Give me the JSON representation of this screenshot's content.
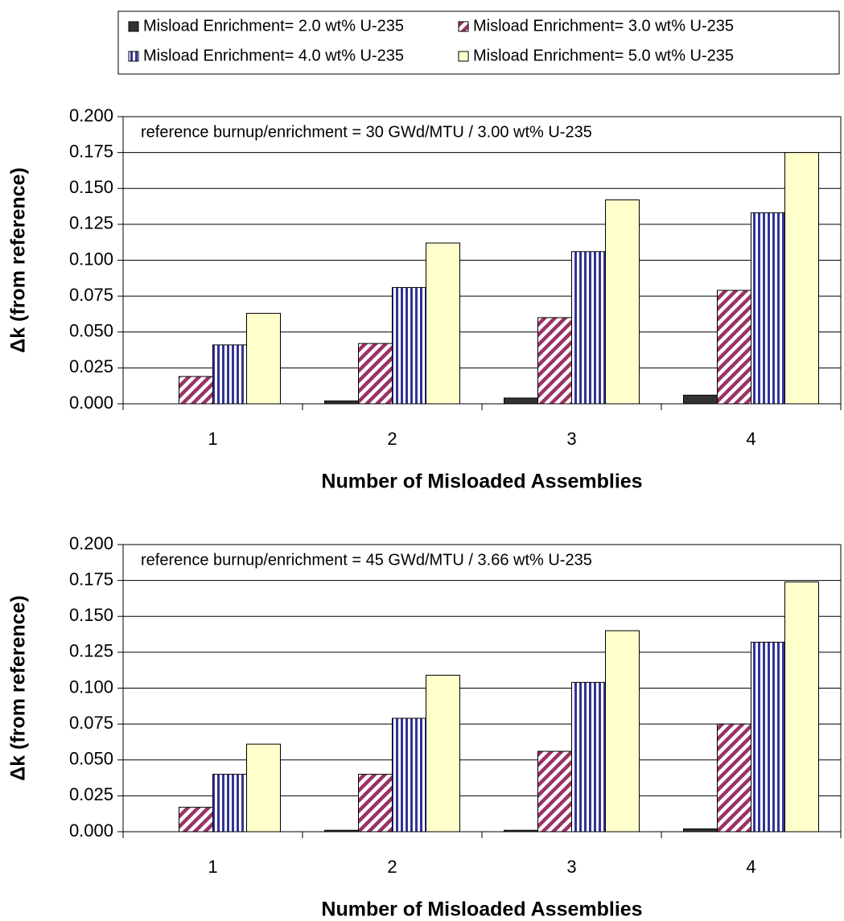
{
  "chart_data": [
    {
      "type": "bar",
      "annotation": "reference burnup/enrichment = 30 GWd/MTU / 3.00 wt% U-235",
      "x_label": "Number of Misloaded Assemblies",
      "y_label": "Δk (from reference)",
      "categories": [
        "1",
        "2",
        "3",
        "4"
      ],
      "series": [
        {
          "name": "Misload Enrichment= 2.0 wt% U-235",
          "color": "#333333",
          "values": [
            0.0,
            0.002,
            0.004,
            0.006
          ]
        },
        {
          "name": "Misload Enrichment= 3.0 wt% U-235",
          "color": "#993366",
          "values": [
            0.019,
            0.042,
            0.06,
            0.079
          ]
        },
        {
          "name": "Misload Enrichment= 4.0 wt% U-235",
          "color": "#333399",
          "values": [
            0.041,
            0.081,
            0.106,
            0.133
          ]
        },
        {
          "name": "Misload Enrichment= 5.0 wt% U-235",
          "color": "#ffffcc",
          "values": [
            0.063,
            0.112,
            0.142,
            0.175
          ]
        }
      ],
      "ylim": [
        0,
        0.2
      ],
      "yticks": [
        {
          "value": 0,
          "label": "0.000"
        },
        {
          "value": 0.025,
          "label": "0.025"
        },
        {
          "value": 0.05,
          "label": "0.050"
        },
        {
          "value": 0.075,
          "label": "0.075"
        },
        {
          "value": 0.1,
          "label": "0.100"
        },
        {
          "value": 0.125,
          "label": "0.125"
        },
        {
          "value": 0.15,
          "label": "0.150"
        },
        {
          "value": 0.175,
          "label": "0.175"
        },
        {
          "value": 0.2,
          "label": "0.200"
        }
      ],
      "grid": true
    },
    {
      "type": "bar",
      "annotation": "reference burnup/enrichment = 45 GWd/MTU / 3.66 wt% U-235",
      "x_label": "Number of Misloaded Assemblies",
      "y_label": "Δk (from reference)",
      "categories": [
        "1",
        "2",
        "3",
        "4"
      ],
      "series": [
        {
          "color": "#333333",
          "values": [
            0.0,
            0.001,
            0.001,
            0.002
          ]
        },
        {
          "color": "#993366",
          "values": [
            0.017,
            0.04,
            0.056,
            0.075
          ]
        },
        {
          "color": "#333399",
          "values": [
            0.04,
            0.079,
            0.104,
            0.132
          ]
        },
        {
          "color": "#ffffcc",
          "values": [
            0.061,
            0.109,
            0.14,
            0.174
          ]
        }
      ],
      "ylim": [
        0,
        0.2
      ],
      "yticks": [
        {
          "value": 0,
          "label": "0.000"
        },
        {
          "value": 0.025,
          "label": "0.025"
        },
        {
          "value": 0.05,
          "label": "0.050"
        },
        {
          "value": 0.075,
          "label": "0.075"
        },
        {
          "value": 0.1,
          "label": "0.100"
        },
        {
          "value": 0.125,
          "label": "0.125"
        },
        {
          "value": 0.15,
          "label": "0.150"
        },
        {
          "value": 0.175,
          "label": "0.175"
        },
        {
          "value": 0.2,
          "label": "0.200"
        }
      ],
      "grid": true
    }
  ]
}
